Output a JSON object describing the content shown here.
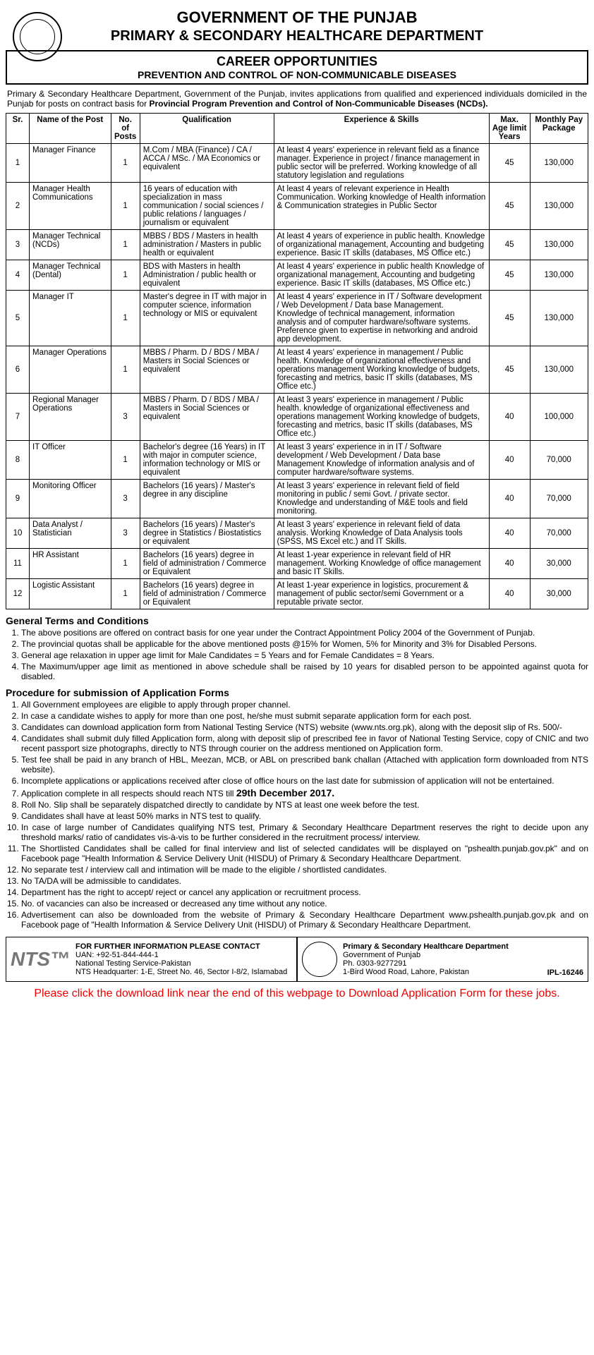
{
  "header": {
    "org": "GOVERNMENT OF THE PUNJAB",
    "dept": "PRIMARY & SECONDARY HEALTHCARE DEPARTMENT",
    "title": "CAREER OPPORTUNITIES",
    "subtitle": "PREVENTION AND CONTROL OF NON-COMMUNICABLE DISEASES"
  },
  "intro": {
    "pre": "Primary & Secondary Healthcare Department, Government of the Punjab, invites applications from qualified and experienced individuals domiciled in the Punjab for posts on contract basis for ",
    "bold": "Provincial Program Prevention and Control of Non-Communicable Diseases (NCDs)."
  },
  "table": {
    "cols": [
      "Sr.",
      "Name of the Post",
      "No. of Posts",
      "Qualification",
      "Experience & Skills",
      "Max. Age limit Years",
      "Monthly Pay Package"
    ],
    "widths": [
      "4%",
      "14%",
      "5%",
      "23%",
      "37%",
      "7%",
      "10%"
    ],
    "rows": [
      [
        "1",
        "Manager Finance",
        "1",
        "M.Com / MBA (Finance) / CA / ACCA / MSc. / MA Economics or equivalent",
        "At least 4 years' experience in relevant field as a finance manager. Experience in project / finance management in public sector will be preferred. Working knowledge of all statutory legislation and regulations",
        "45",
        "130,000"
      ],
      [
        "2",
        "Manager Health Communications",
        "1",
        "16 years of education with specialization in mass communication / social sciences / public relations / languages / journalism or equivalent",
        "At least 4 years of relevant experience in Health Communication. Working knowledge of Health information & Communication strategies in Public Sector",
        "45",
        "130,000"
      ],
      [
        "3",
        "Manager Technical (NCDs)",
        "1",
        "MBBS / BDS / Masters in health administration / Masters in public health or equivalent",
        "At least 4 years of experience in public health. Knowledge of organizational management, Accounting and budgeting experience. Basic IT skills (databases, MS Office etc.)",
        "45",
        "130,000"
      ],
      [
        "4",
        "Manager Technical (Dental)",
        "1",
        "BDS with Masters in health Administration / public health or equivalent",
        "At least 4 years' experience in public health Knowledge of organizational management, Accounting and budgeting experience. Basic IT skills (databases, MS Office etc.)",
        "45",
        "130,000"
      ],
      [
        "5",
        "Manager IT",
        "1",
        "Master's degree in IT with major in computer science, information technology or MIS or equivalent",
        "At least 4 years' experience in IT / Software development / Web Development / Data base Management. Knowledge of technical management, information analysis and of computer hardware/software systems. Preference given to expertise in networking and android app development.",
        "45",
        "130,000"
      ],
      [
        "6",
        "Manager Operations",
        "1",
        "MBBS / Pharm. D / BDS / MBA / Masters in Social Sciences or equivalent",
        "At least 4 years' experience in management / Public health. Knowledge of organizational effectiveness and operations management Working knowledge of budgets, forecasting and metrics, basic IT skills (databases, MS Office etc.)",
        "45",
        "130,000"
      ],
      [
        "7",
        "Regional Manager Operations",
        "3",
        "MBBS / Pharm. D / BDS / MBA / Masters in Social Sciences or equivalent",
        "At least 3 years' experience in management / Public health. knowledge of organizational effectiveness and operations management Working knowledge of budgets, forecasting and metrics, basic IT skills (databases, MS Office etc.)",
        "40",
        "100,000"
      ],
      [
        "8",
        "IT Officer",
        "1",
        "Bachelor's degree (16 Years) in IT with major in computer science, information technology or MIS or equivalent",
        "At least 3 years' experience in in IT / Software development / Web Development / Data base Management Knowledge of information analysis and of computer hardware/software systems.",
        "40",
        "70,000"
      ],
      [
        "9",
        "Monitoring Officer",
        "3",
        "Bachelors (16 years) / Master's degree in any discipline",
        "At least 3 years' experience in relevant field of field monitoring in public / semi Govt. / private sector. Knowledge and understanding of M&E tools and field monitoring.",
        "40",
        "70,000"
      ],
      [
        "10",
        "Data Analyst / Statistician",
        "3",
        "Bachelors (16 years) / Master's degree in Statistics / Biostatistics or equivalent",
        "At least 3 years' experience in relevant field of data analysis. Working Knowledge of Data Analysis tools (SPSS, MS Excel etc.) and IT Skills.",
        "40",
        "70,000"
      ],
      [
        "11",
        "HR Assistant",
        "1",
        "Bachelors (16 years) degree in field of administration / Commerce or Equivalent",
        "At least 1-year experience in relevant field of HR management. Working Knowledge of office management and basic IT Skills.",
        "40",
        "30,000"
      ],
      [
        "12",
        "Logistic Assistant",
        "1",
        "Bachelors (16 years) degree in field of administration / Commerce or Equivalent",
        "At least 1-year experience in logistics, procurement & management of public sector/semi Government or a reputable private sector.",
        "40",
        "30,000"
      ]
    ]
  },
  "terms": {
    "title": "General Terms and Conditions",
    "items": [
      "The above positions are offered on contract basis for one year under the Contract Appointment Policy 2004 of the Government of Punjab.",
      "The provincial quotas shall be applicable for the above mentioned posts @15% for Women, 5% for Minority and 3% for Disabled Persons.",
      "General age relaxation in upper age limit for Male Candidates = 5 Years and for Female Candidates = 8 Years.",
      "The Maximum/upper age limit as mentioned in above schedule shall be raised by 10 years for disabled person to be appointed against quota for disabled."
    ]
  },
  "procedure": {
    "title": "Procedure for submission of Application Forms",
    "items": [
      "All Government employees are eligible to apply through proper channel.",
      "In case a candidate wishes to apply for more than one post, he/she must submit separate application form for each post.",
      "Candidates can download application form from National Testing Service (NTS) website (www.nts.org.pk), along with the deposit slip of Rs. 500/-",
      "Candidates shall submit duly filled Application form, along with deposit slip of prescribed fee in favor of National Testing Service, copy of CNIC and two recent passport size photographs, directly to NTS through courier on the address mentioned on Application form.",
      "Test fee shall be paid in any branch of HBL, Meezan, MCB, or ABL on prescribed bank challan (Attached with application form downloaded from NTS website).",
      "Incomplete applications or applications received after close of office hours on the last date for submission of application will not be entertained.",
      "Application complete in all respects should reach NTS till",
      "Roll No. Slip shall be separately dispatched directly to candidate by NTS at least one week before the test.",
      "Candidates shall have at least 50% marks in NTS test to qualify.",
      "In case of large number of Candidates qualifying NTS test, Primary & Secondary Healthcare Department reserves the right to decide upon any threshold marks/ ratio of candidates vis-à-vis to be further considered in the recruitment process/ interview.",
      "The Shortlisted Candidates shall be called for final interview and list of selected candidates will be displayed on \"pshealth.punjab.gov.pk\" and on Facebook page \"Health Information & Service Delivery Unit (HISDU) of Primary & Secondary Healthcare Department.",
      "No separate test / interview call and intimation will be made to the eligible / shortlisted candidates.",
      "No TA/DA will be admissible to candidates.",
      "Department has the right to accept/ reject or cancel any application or recruitment process.",
      "No. of vacancies can also be increased or decreased any time without any notice.",
      "Advertisement can also be downloaded from the website of Primary & Secondary Healthcare Department www.pshealth.punjab.gov.pk and on Facebook page of \"Health Information & Service Delivery Unit (HISDU) of Primary & Secondary Healthcare Department."
    ],
    "deadline": "29th December 2017."
  },
  "footer": {
    "left": {
      "title": "FOR FURTHER INFORMATION PLEASE CONTACT",
      "uan": "UAN: +92-51-844-444-1",
      "org": "National Testing Service-Pakistan",
      "addr": "NTS Headquarter: 1-E, Street No. 46, Sector I-8/2, Islamabad",
      "logo": "NTS™"
    },
    "right": {
      "title": "Primary & Secondary Healthcare Department",
      "sub": "Government of Punjab",
      "ph": "Ph. 0303-9277291",
      "addr": "1-Bird Wood Road, Lahore, Pakistan",
      "ipl": "IPL-16246"
    }
  },
  "rednote": "Please click the download link near the end of this webpage to Download Application Form for these jobs."
}
